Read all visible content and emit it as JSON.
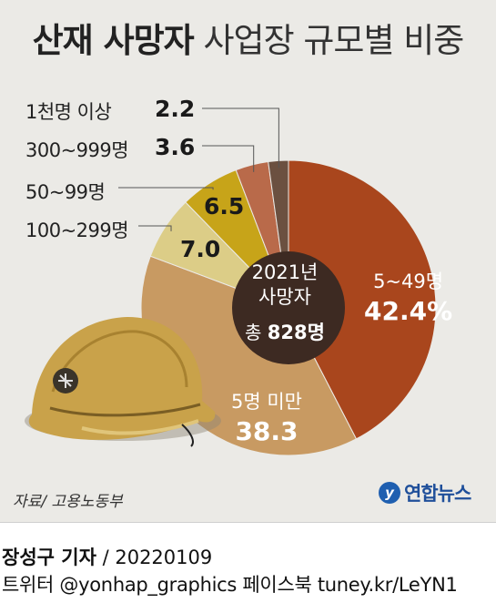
{
  "title_bold": "산재 사망자",
  "title_rest": "사업장 규모별 비중",
  "center": {
    "line1": "2021년",
    "line2": "사망자",
    "total_prefix": "총 ",
    "total_value": "828명"
  },
  "source": "자료/ 고용노동부",
  "logo": "연합뉴스",
  "footer": {
    "reporter": "장성구 기자",
    "date": " / 20220109",
    "sns": "트위터 @yonhap_graphics  페이스북 tuney.kr/LeYN1"
  },
  "colors": {
    "5_49": "#a9461d",
    "5_under": "#c89a62",
    "100_299": "#dccd87",
    "50_99": "#c7a419",
    "300_999": "#b96a4a",
    "1000_plus": "#6b5040",
    "center": "#3d2a22",
    "background": "#ebeae6"
  },
  "chart_data": {
    "type": "pie",
    "title": "산재 사망자 사업장 규모별 비중",
    "center_label": "2021년 사망자 총 828명",
    "slices": [
      {
        "label": "5~49명",
        "value": 42.4,
        "value_text": "42.4%"
      },
      {
        "label": "5명 미만",
        "value": 38.3,
        "value_text": "38.3"
      },
      {
        "label": "100~299명",
        "value": 7.0,
        "value_text": "7.0"
      },
      {
        "label": "50~99명",
        "value": 6.5,
        "value_text": "6.5"
      },
      {
        "label": "300~999명",
        "value": 3.6,
        "value_text": "3.6"
      },
      {
        "label": "1천명 이상",
        "value": 2.2,
        "value_text": "2.2"
      }
    ]
  }
}
